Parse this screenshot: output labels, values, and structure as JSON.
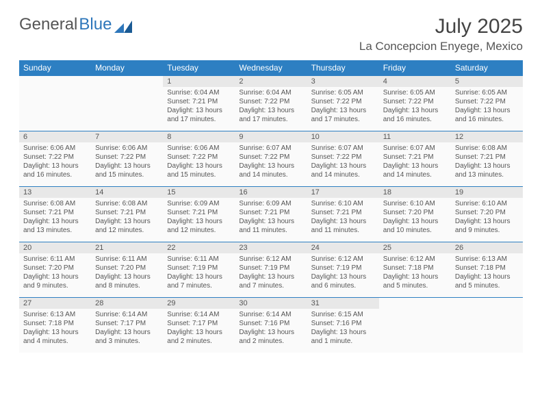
{
  "logo": {
    "text1": "General",
    "text2": "Blue"
  },
  "title": "July 2025",
  "location": "La Concepcion Enyege, Mexico",
  "colors": {
    "header_bg": "#2d7fc2",
    "header_text": "#ffffff",
    "daynum_bg": "#e8e8e8",
    "cell_bg": "#fafafa",
    "text": "#555555",
    "border": "#2d7fc2"
  },
  "day_names": [
    "Sunday",
    "Monday",
    "Tuesday",
    "Wednesday",
    "Thursday",
    "Friday",
    "Saturday"
  ],
  "weeks": [
    {
      "nums": [
        "",
        "",
        "1",
        "2",
        "3",
        "4",
        "5"
      ],
      "cells": [
        null,
        null,
        {
          "sunrise": "6:04 AM",
          "sunset": "7:21 PM",
          "daylight": "13 hours and 17 minutes."
        },
        {
          "sunrise": "6:04 AM",
          "sunset": "7:22 PM",
          "daylight": "13 hours and 17 minutes."
        },
        {
          "sunrise": "6:05 AM",
          "sunset": "7:22 PM",
          "daylight": "13 hours and 17 minutes."
        },
        {
          "sunrise": "6:05 AM",
          "sunset": "7:22 PM",
          "daylight": "13 hours and 16 minutes."
        },
        {
          "sunrise": "6:05 AM",
          "sunset": "7:22 PM",
          "daylight": "13 hours and 16 minutes."
        }
      ]
    },
    {
      "nums": [
        "6",
        "7",
        "8",
        "9",
        "10",
        "11",
        "12"
      ],
      "cells": [
        {
          "sunrise": "6:06 AM",
          "sunset": "7:22 PM",
          "daylight": "13 hours and 16 minutes."
        },
        {
          "sunrise": "6:06 AM",
          "sunset": "7:22 PM",
          "daylight": "13 hours and 15 minutes."
        },
        {
          "sunrise": "6:06 AM",
          "sunset": "7:22 PM",
          "daylight": "13 hours and 15 minutes."
        },
        {
          "sunrise": "6:07 AM",
          "sunset": "7:22 PM",
          "daylight": "13 hours and 14 minutes."
        },
        {
          "sunrise": "6:07 AM",
          "sunset": "7:22 PM",
          "daylight": "13 hours and 14 minutes."
        },
        {
          "sunrise": "6:07 AM",
          "sunset": "7:21 PM",
          "daylight": "13 hours and 14 minutes."
        },
        {
          "sunrise": "6:08 AM",
          "sunset": "7:21 PM",
          "daylight": "13 hours and 13 minutes."
        }
      ]
    },
    {
      "nums": [
        "13",
        "14",
        "15",
        "16",
        "17",
        "18",
        "19"
      ],
      "cells": [
        {
          "sunrise": "6:08 AM",
          "sunset": "7:21 PM",
          "daylight": "13 hours and 13 minutes."
        },
        {
          "sunrise": "6:08 AM",
          "sunset": "7:21 PM",
          "daylight": "13 hours and 12 minutes."
        },
        {
          "sunrise": "6:09 AM",
          "sunset": "7:21 PM",
          "daylight": "13 hours and 12 minutes."
        },
        {
          "sunrise": "6:09 AM",
          "sunset": "7:21 PM",
          "daylight": "13 hours and 11 minutes."
        },
        {
          "sunrise": "6:10 AM",
          "sunset": "7:21 PM",
          "daylight": "13 hours and 11 minutes."
        },
        {
          "sunrise": "6:10 AM",
          "sunset": "7:20 PM",
          "daylight": "13 hours and 10 minutes."
        },
        {
          "sunrise": "6:10 AM",
          "sunset": "7:20 PM",
          "daylight": "13 hours and 9 minutes."
        }
      ]
    },
    {
      "nums": [
        "20",
        "21",
        "22",
        "23",
        "24",
        "25",
        "26"
      ],
      "cells": [
        {
          "sunrise": "6:11 AM",
          "sunset": "7:20 PM",
          "daylight": "13 hours and 9 minutes."
        },
        {
          "sunrise": "6:11 AM",
          "sunset": "7:20 PM",
          "daylight": "13 hours and 8 minutes."
        },
        {
          "sunrise": "6:11 AM",
          "sunset": "7:19 PM",
          "daylight": "13 hours and 7 minutes."
        },
        {
          "sunrise": "6:12 AM",
          "sunset": "7:19 PM",
          "daylight": "13 hours and 7 minutes."
        },
        {
          "sunrise": "6:12 AM",
          "sunset": "7:19 PM",
          "daylight": "13 hours and 6 minutes."
        },
        {
          "sunrise": "6:12 AM",
          "sunset": "7:18 PM",
          "daylight": "13 hours and 5 minutes."
        },
        {
          "sunrise": "6:13 AM",
          "sunset": "7:18 PM",
          "daylight": "13 hours and 5 minutes."
        }
      ]
    },
    {
      "nums": [
        "27",
        "28",
        "29",
        "30",
        "31",
        "",
        ""
      ],
      "cells": [
        {
          "sunrise": "6:13 AM",
          "sunset": "7:18 PM",
          "daylight": "13 hours and 4 minutes."
        },
        {
          "sunrise": "6:14 AM",
          "sunset": "7:17 PM",
          "daylight": "13 hours and 3 minutes."
        },
        {
          "sunrise": "6:14 AM",
          "sunset": "7:17 PM",
          "daylight": "13 hours and 2 minutes."
        },
        {
          "sunrise": "6:14 AM",
          "sunset": "7:16 PM",
          "daylight": "13 hours and 2 minutes."
        },
        {
          "sunrise": "6:15 AM",
          "sunset": "7:16 PM",
          "daylight": "13 hours and 1 minute."
        },
        null,
        null
      ]
    }
  ],
  "labels": {
    "sunrise": "Sunrise:",
    "sunset": "Sunset:",
    "daylight": "Daylight:"
  }
}
